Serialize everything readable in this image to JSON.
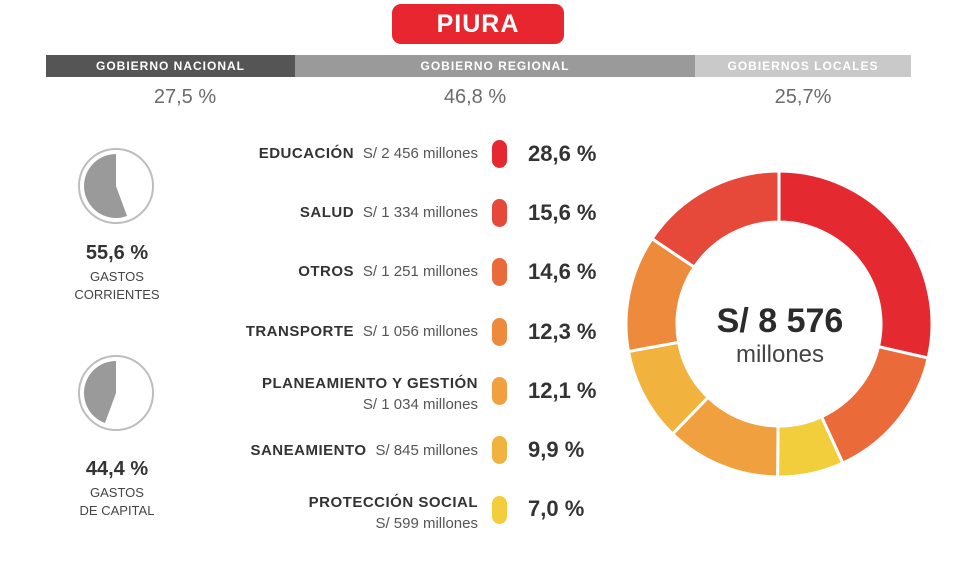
{
  "title": "PIURA",
  "government_levels": [
    {
      "label": "GOBIERNO NACIONAL",
      "percent": "27,5 %",
      "color": "#555555"
    },
    {
      "label": "GOBIERNO REGIONAL",
      "percent": "46,8 %",
      "color": "#9a9a9a"
    },
    {
      "label": "GOBIERNOS LOCALES",
      "percent": "25,7%",
      "color": "#c9c9c9"
    }
  ],
  "spending_type": {
    "current": {
      "percent": "55,6 %",
      "line1": "GASTOS",
      "line2": "CORRIENTES",
      "value": 55.6
    },
    "capital": {
      "percent": "44,4 %",
      "line1": "GASTOS",
      "line2": "DE CAPITAL",
      "value": 44.4
    }
  },
  "chart_data": {
    "type": "pie",
    "total_value": "S/ 8 576",
    "total_unit": "millones",
    "categories": [
      {
        "name": "EDUCACIÓN",
        "amount": "S/ 2 456 millones",
        "percent_label": "28,6 %",
        "value": 28.6,
        "color": "#e42a30"
      },
      {
        "name": "SALUD",
        "amount": "S/ 1 334 millones",
        "percent_label": "15,6 %",
        "value": 15.6,
        "color": "#e6483a"
      },
      {
        "name": "OTROS",
        "amount": "S/ 1 251 millones",
        "percent_label": "14,6 %",
        "value": 14.6,
        "color": "#ea6a39"
      },
      {
        "name": "TRANSPORTE",
        "amount": "S/ 1 056 millones",
        "percent_label": "12,3 %",
        "value": 12.3,
        "color": "#ee8a3c"
      },
      {
        "name": "PLANEAMIENTO Y GESTIÓN",
        "amount": "S/ 1 034 millones",
        "percent_label": "12,1 %",
        "value": 12.1,
        "color": "#f0a03f"
      },
      {
        "name": "SANEAMIENTO",
        "amount": "S/ 845 millones",
        "percent_label": "9,9 %",
        "value": 9.9,
        "color": "#f2b23e"
      },
      {
        "name": "PROTECCIÓN SOCIAL",
        "amount": "S/ 599 millones",
        "percent_label": "7,0 %",
        "value": 7.0,
        "color": "#f2cd3c"
      }
    ],
    "donut_order": [
      "EDUCACIÓN",
      "OTROS",
      "PROTECCIÓN SOCIAL",
      "PLANEAMIENTO Y GESTIÓN",
      "SANEAMIENTO",
      "TRANSPORTE",
      "SALUD"
    ]
  }
}
